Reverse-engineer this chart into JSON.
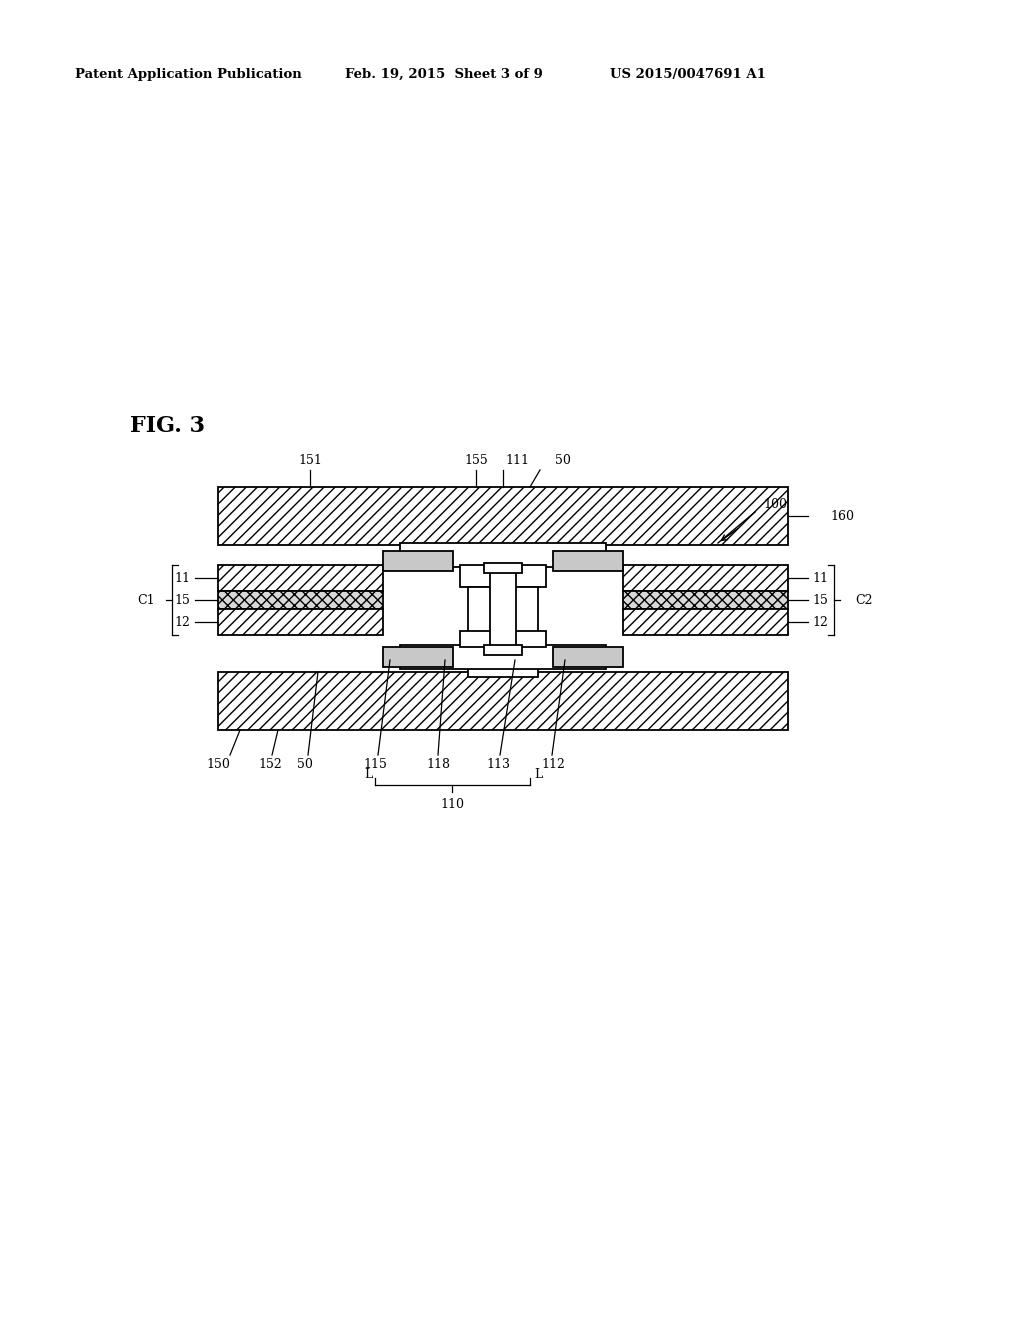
{
  "header_left": "Patent Application Publication",
  "header_mid": "Feb. 19, 2015  Sheet 3 of 9",
  "header_right": "US 2015/0047691 A1",
  "fig_label": "FIG. 3",
  "bg_color": "#ffffff",
  "line_color": "#000000",
  "gray_fill": "#c8c8c8",
  "white_fill": "#ffffff"
}
